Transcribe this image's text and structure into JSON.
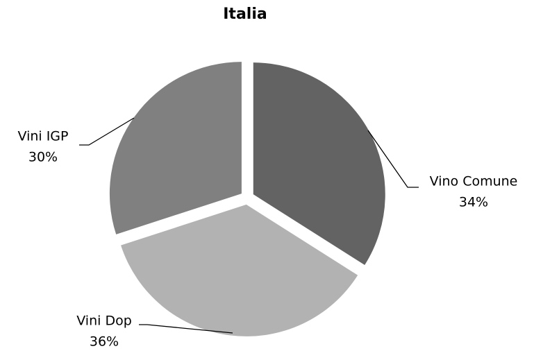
{
  "chart_data": {
    "type": "pie",
    "title": "Italia",
    "categories": [
      "Vino Comune",
      "Vini Dop",
      "Vini IGP"
    ],
    "values": [
      34,
      36,
      30
    ],
    "value_labels": [
      "34%",
      "36%",
      "30%"
    ],
    "colors": [
      "#636363",
      "#b2b2b2",
      "#808080"
    ]
  }
}
